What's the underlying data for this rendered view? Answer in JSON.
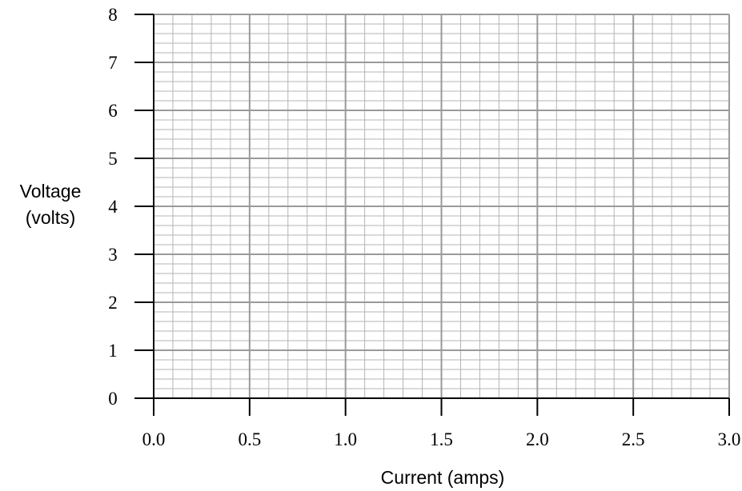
{
  "chart_data": {
    "type": "line",
    "title": "",
    "xlabel": "Current (amps)",
    "ylabel_lines": [
      "Voltage",
      "(volts)"
    ],
    "xlim": [
      0,
      3
    ],
    "ylim": [
      0,
      8
    ],
    "x_ticks": [
      "0.0",
      "0.5",
      "1.0",
      "1.5",
      "2.0",
      "2.5",
      "3.0"
    ],
    "y_ticks": [
      "0",
      "1",
      "2",
      "3",
      "4",
      "5",
      "6",
      "7",
      "8"
    ],
    "x_minor_per_major": 5,
    "y_minor_per_major": 5,
    "grid": true,
    "series": [],
    "colors": {
      "minor_grid": "#b4b4b4",
      "major_grid": "#9a9a9a",
      "axis": "#000000"
    }
  }
}
